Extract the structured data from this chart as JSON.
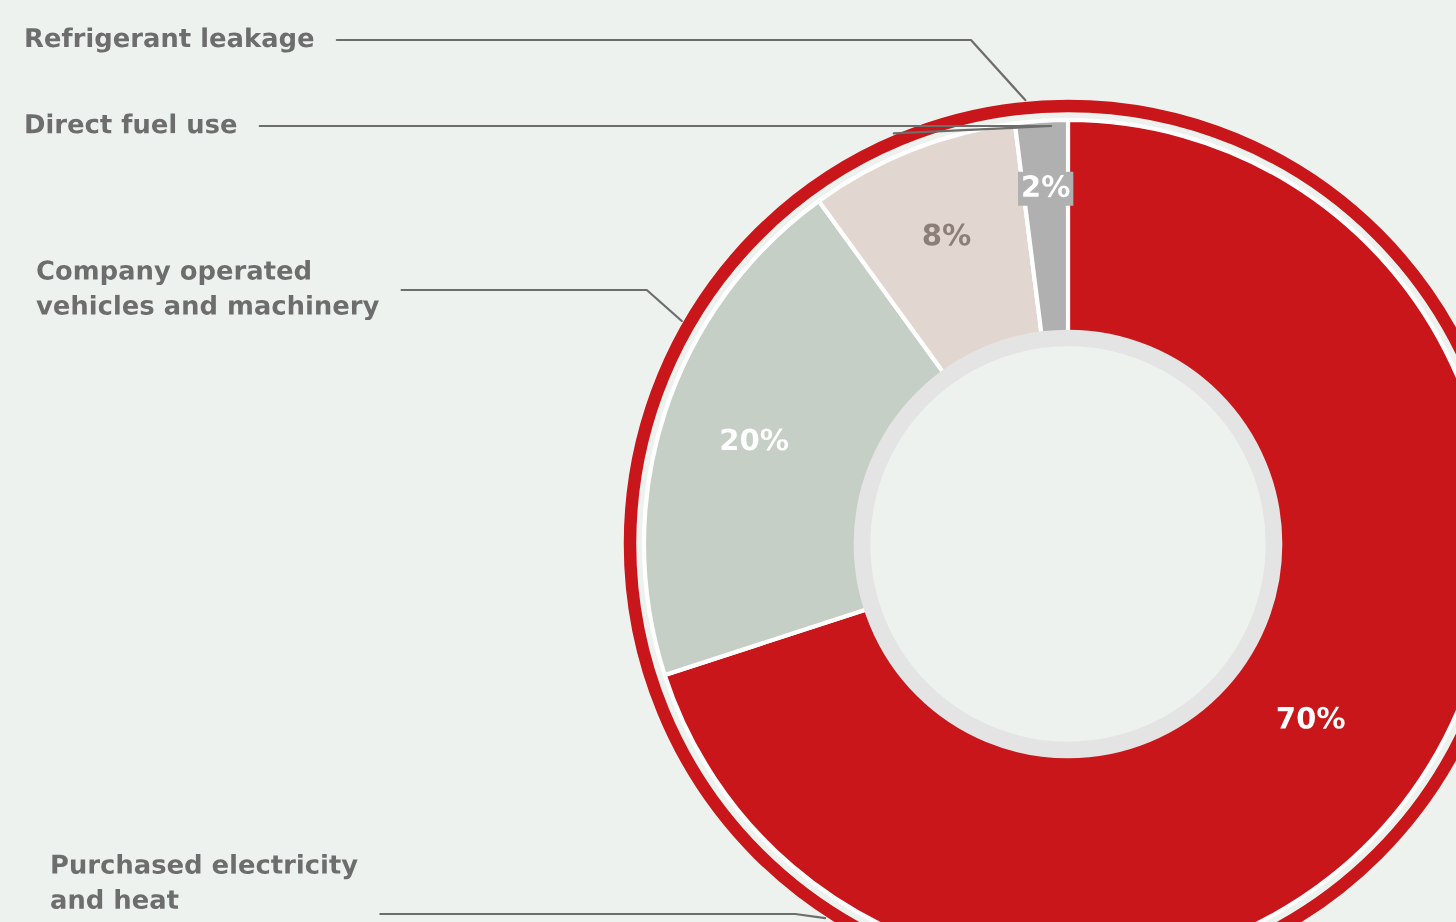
{
  "chart_data": {
    "type": "donut",
    "categories": [
      "Purchased electricity\nand heat",
      "Company operated\nvehicles and machinery",
      "Direct fuel use",
      "Refrigerant leakage"
    ],
    "values": [
      70,
      20,
      8,
      2
    ],
    "colors": [
      "#c8161a",
      "#c5cfc5",
      "#e2d6d0",
      "#b0b0b0"
    ],
    "value_labels": [
      "70%",
      "20%",
      "8%",
      "2%"
    ]
  }
}
